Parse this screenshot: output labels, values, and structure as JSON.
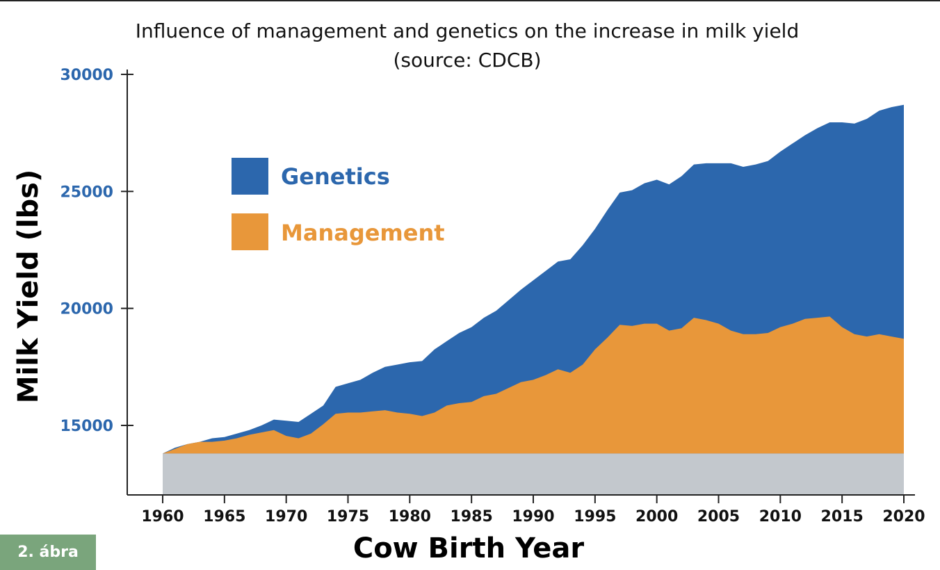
{
  "figure_label": "2. ábra",
  "chart_data": {
    "type": "area",
    "title": "Influence of management and genetics on the increase in milk yield",
    "subtitle": "(source: CDCB)",
    "xlabel": "Cow Birth Year",
    "ylabel": "Milk Yield (lbs)",
    "xlim": [
      1960,
      2020
    ],
    "ylim": [
      12000,
      30000
    ],
    "baseline": 13800,
    "xticks": [
      1960,
      1965,
      1970,
      1975,
      1980,
      1985,
      1990,
      1995,
      2000,
      2005,
      2010,
      2015,
      2020
    ],
    "yticks": [
      15000,
      20000,
      25000,
      30000
    ],
    "legend_position": "upper-left",
    "x": [
      1960,
      1961,
      1962,
      1963,
      1964,
      1965,
      1966,
      1967,
      1968,
      1969,
      1970,
      1971,
      1972,
      1973,
      1974,
      1975,
      1976,
      1977,
      1978,
      1979,
      1980,
      1981,
      1982,
      1983,
      1984,
      1985,
      1986,
      1987,
      1988,
      1989,
      1990,
      1991,
      1992,
      1993,
      1994,
      1995,
      1996,
      1997,
      1998,
      1999,
      2000,
      2001,
      2002,
      2003,
      2004,
      2005,
      2006,
      2007,
      2008,
      2009,
      2010,
      2011,
      2012,
      2013,
      2014,
      2015,
      2016,
      2017,
      2018,
      2019,
      2020
    ],
    "series": [
      {
        "name": "Genetics",
        "color": "#2c67ad",
        "values": [
          13800,
          14050,
          14200,
          14300,
          14450,
          14500,
          14650,
          14800,
          15000,
          15250,
          15200,
          15150,
          15500,
          15850,
          16650,
          16800,
          16950,
          17250,
          17500,
          17600,
          17700,
          17750,
          18250,
          18600,
          18950,
          19200,
          19600,
          19900,
          20350,
          20800,
          21200,
          21600,
          22000,
          22100,
          22700,
          23400,
          24200,
          24950,
          25050,
          25350,
          25500,
          25300,
          25650,
          26150,
          26200,
          26200,
          26200,
          26050,
          26150,
          26300,
          26700,
          27050,
          27400,
          27700,
          27950,
          27950,
          27900,
          28100,
          28450,
          28600,
          28700
        ]
      },
      {
        "name": "Management",
        "color": "#e8973a",
        "values": [
          13800,
          14000,
          14200,
          14300,
          14300,
          14350,
          14450,
          14600,
          14700,
          14800,
          14550,
          14450,
          14650,
          15050,
          15500,
          15550,
          15550,
          15600,
          15650,
          15550,
          15500,
          15400,
          15550,
          15850,
          15950,
          16000,
          16250,
          16350,
          16600,
          16850,
          16950,
          17150,
          17400,
          17250,
          17600,
          18250,
          18750,
          19300,
          19250,
          19350,
          19350,
          19050,
          19150,
          19600,
          19500,
          19350,
          19050,
          18900,
          18900,
          18950,
          19200,
          19350,
          19550,
          19600,
          19650,
          19200,
          18900,
          18800,
          18900,
          18800,
          18700
        ]
      }
    ]
  }
}
